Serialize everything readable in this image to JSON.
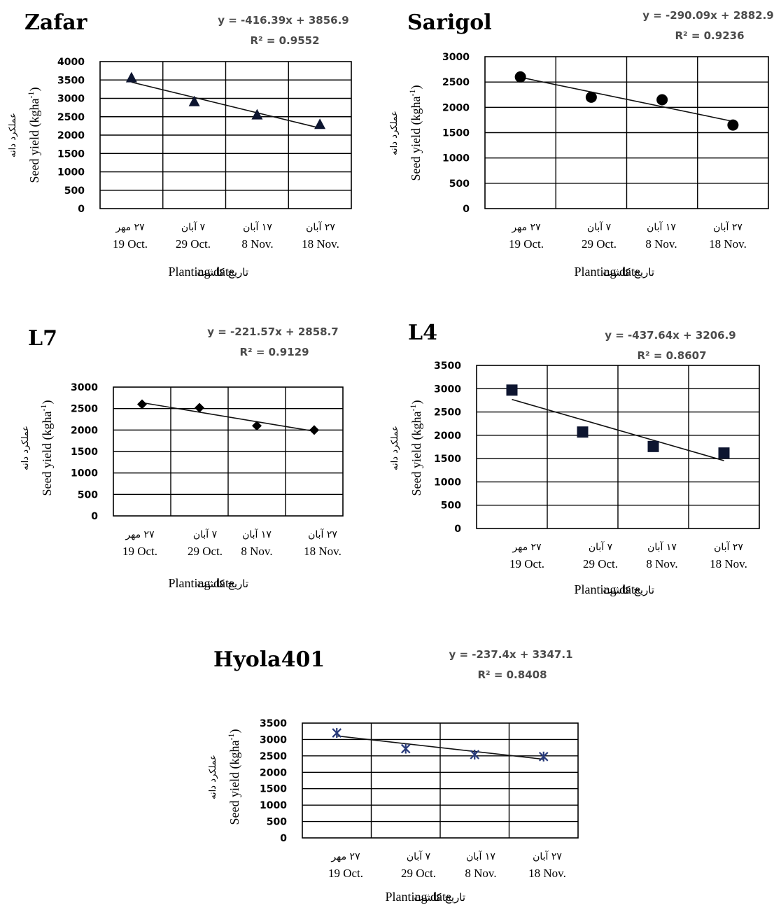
{
  "chart_data": [
    {
      "type": "scatter",
      "title": "Zafar",
      "equation": "y = -416.39x + 3856.9",
      "r2": "R² = 0.9552",
      "categories_fa": [
        "۲۷ مهر",
        "۷ آبان",
        "۱۷ آبان",
        "۲۷ آبان"
      ],
      "categories_en": [
        "19 Oct.",
        "29 Oct.",
        "8 Nov.",
        "18 Nov."
      ],
      "values": [
        3550,
        2900,
        2540,
        2280
      ],
      "trend": {
        "slope": -416.39,
        "intercept": 3856.9
      },
      "ylim": [
        0,
        4000
      ],
      "yticks": [
        0,
        500,
        1000,
        1500,
        2000,
        2500,
        3000,
        3500,
        4000
      ],
      "marker": "triangle",
      "color": "#0d1530",
      "ylabel_en": "Seed yield (kgha",
      "ylabel_sup": "-1",
      "ylabel_close": ")",
      "ylabel_fa": "عملکرد دانه",
      "xlabel_en": "Planting date",
      "xlabel_fa": "تاریخ کاشت",
      "grid": true
    },
    {
      "type": "scatter",
      "title": "Sarigol",
      "equation": "y = -290.09x + 2882.9",
      "r2": "R² = 0.9236",
      "categories_fa": [
        "۲۷ مهر",
        "۷ آبان",
        "۱۷ آبان",
        "۲۷ آبان"
      ],
      "categories_en": [
        "19 Oct.",
        "29 Oct.",
        "8 Nov.",
        "18 Nov."
      ],
      "values": [
        2600,
        2200,
        2150,
        1650
      ],
      "trend": {
        "slope": -290.09,
        "intercept": 2882.9
      },
      "ylim": [
        0,
        3000
      ],
      "yticks": [
        0,
        500,
        1000,
        1500,
        2000,
        2500,
        3000
      ],
      "marker": "circle",
      "color": "#000000",
      "ylabel_en": "Seed yield (kgha",
      "ylabel_sup": "-1",
      "ylabel_close": ")",
      "ylabel_fa": "عملکرد دانه",
      "xlabel_en": "Planting date",
      "xlabel_fa": "تاریخ کاشت",
      "grid": true
    },
    {
      "type": "scatter",
      "title": "L7",
      "equation": "y = -221.57x + 2858.7",
      "r2": "R² = 0.9129",
      "categories_fa": [
        "۲۷ مهر",
        "۷ آبان",
        "۱۷ آبان",
        "۲۷ آبان"
      ],
      "categories_en": [
        "19 Oct.",
        "29 Oct.",
        "8 Nov.",
        "18 Nov."
      ],
      "values": [
        2600,
        2520,
        2100,
        2000
      ],
      "trend": {
        "slope": -221.57,
        "intercept": 2858.7
      },
      "ylim": [
        0,
        3000
      ],
      "yticks": [
        0,
        500,
        1000,
        1500,
        2000,
        2500,
        3000
      ],
      "marker": "diamond",
      "color": "#000000",
      "ylabel_en": "Seed yield (kgha",
      "ylabel_sup": "-1",
      "ylabel_close": ")",
      "ylabel_fa": "عملکرد دانه",
      "xlabel_en": "Planting date",
      "xlabel_fa": "تاریخ کاشت",
      "grid": true
    },
    {
      "type": "scatter",
      "title": "L4",
      "equation": "y = -437.64x + 3206.9",
      "r2": "R² = 0.8607",
      "categories_fa": [
        "۲۷ مهر",
        "۷ آبان",
        "۱۷ آبان",
        "۲۷ آبان"
      ],
      "categories_en": [
        "19 Oct.",
        "29 Oct.",
        "8 Nov.",
        "18 Nov."
      ],
      "values": [
        2970,
        2070,
        1760,
        1620
      ],
      "trend": {
        "slope": -437.64,
        "intercept": 3206.9
      },
      "ylim": [
        0,
        3500
      ],
      "yticks": [
        0,
        500,
        1000,
        1500,
        2000,
        2500,
        3000,
        3500
      ],
      "marker": "square",
      "color": "#0d1530",
      "ylabel_en": "Seed yield (kgha",
      "ylabel_sup": "-1",
      "ylabel_close": ")",
      "ylabel_fa": "عملکرد دانه",
      "xlabel_en": "Planting date",
      "xlabel_fa": "تاریخ کاشت",
      "grid": true
    },
    {
      "type": "scatter",
      "title": "Hyola401",
      "equation": "y = -237.4x + 3347.1",
      "r2": "R² = 0.8408",
      "categories_fa": [
        "۲۷ مهر",
        "۷ آبان",
        "۱۷ آبان",
        "۲۷ آبان"
      ],
      "categories_en": [
        "19 Oct.",
        "29 Oct.",
        "8 Nov.",
        "18 Nov."
      ],
      "values": [
        3200,
        2720,
        2540,
        2480
      ],
      "trend": {
        "slope": -237.4,
        "intercept": 3347.1
      },
      "ylim": [
        0,
        3500
      ],
      "yticks": [
        0,
        500,
        1000,
        1500,
        2000,
        2500,
        3000,
        3500
      ],
      "marker": "star",
      "color": "#283a7a",
      "ylabel_en": "Seed yield (kgha",
      "ylabel_sup": "-1",
      "ylabel_close": ")",
      "ylabel_fa": "عملکرد دانه",
      "xlabel_en": "Planting date",
      "xlabel_fa": "تاریخ کاشت",
      "grid": true
    }
  ]
}
